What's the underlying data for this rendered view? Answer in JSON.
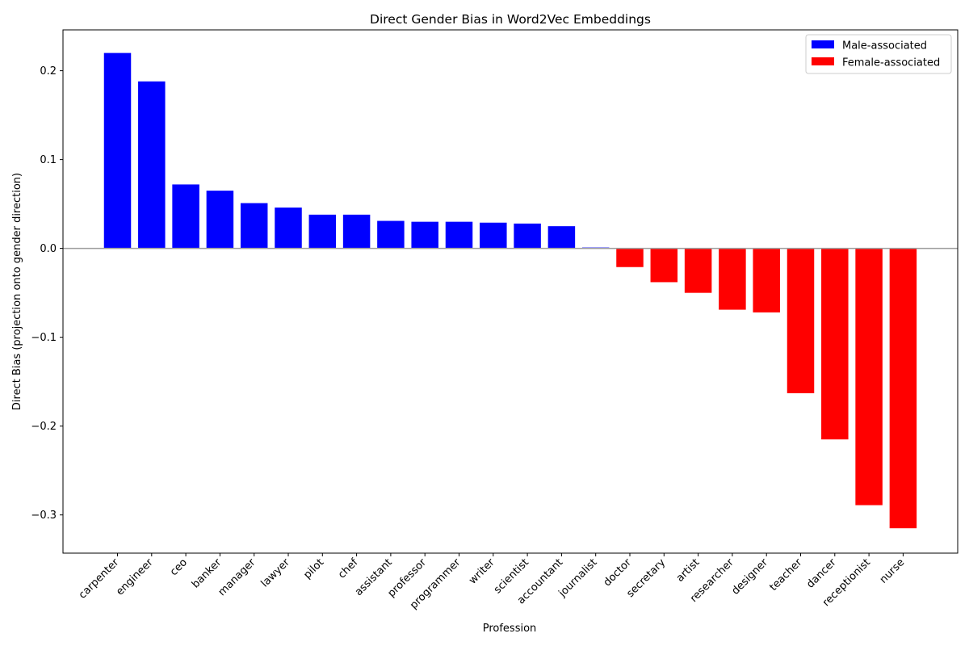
{
  "chart_data": {
    "type": "bar",
    "title": "Direct Gender Bias in Word2Vec Embeddings",
    "xlabel": "Profession",
    "ylabel": "Direct Bias (projection onto gender direction)",
    "ylim": [
      -0.343,
      0.246
    ],
    "yticks": [
      0.2,
      0.1,
      0.0,
      -0.1,
      -0.2,
      -0.3
    ],
    "ytick_labels": [
      "0.2",
      "0.1",
      "0.0",
      "−0.1",
      "−0.2",
      "−0.3"
    ],
    "grid": false,
    "zero_line": true,
    "legend_position": "top-right",
    "categories": [
      "carpenter",
      "engineer",
      "ceo",
      "banker",
      "manager",
      "lawyer",
      "pilot",
      "chef",
      "assistant",
      "professor",
      "programmer",
      "writer",
      "scientist",
      "accountant",
      "journalist",
      "doctor",
      "secretary",
      "artist",
      "researcher",
      "designer",
      "teacher",
      "dancer",
      "receptionist",
      "nurse"
    ],
    "values": [
      0.22,
      0.188,
      0.072,
      0.065,
      0.051,
      0.046,
      0.038,
      0.038,
      0.031,
      0.03,
      0.03,
      0.029,
      0.028,
      0.025,
      0.001,
      -0.021,
      -0.038,
      -0.05,
      -0.069,
      -0.072,
      -0.163,
      -0.215,
      -0.289,
      -0.315
    ],
    "series": [
      {
        "name": "Male-associated",
        "color": "#0000ff"
      },
      {
        "name": "Female-associated",
        "color": "#ff0000"
      }
    ]
  }
}
